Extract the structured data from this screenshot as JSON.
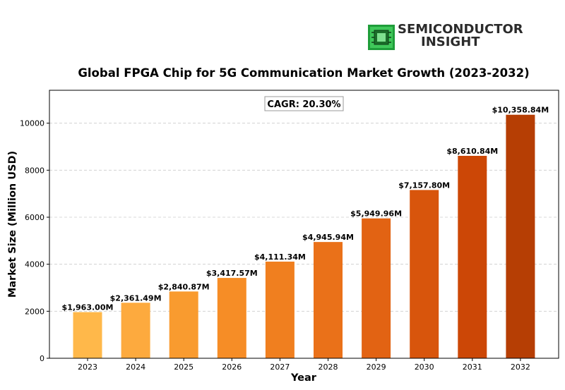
{
  "logo": {
    "line1": "SEMICONDUCTOR",
    "line2": "INSIGHT",
    "icon": "chip-icon"
  },
  "chart_data": {
    "type": "bar",
    "title": "Global FPGA Chip for 5G Communication Market Growth (2023-2032)",
    "xlabel": "Year",
    "ylabel": "Market Size (Million USD)",
    "annotation": "CAGR: 20.30%",
    "categories": [
      "2023",
      "2024",
      "2025",
      "2026",
      "2027",
      "2028",
      "2029",
      "2030",
      "2031",
      "2032"
    ],
    "values": [
      1963.0,
      2361.49,
      2840.87,
      3417.57,
      4111.34,
      4945.94,
      5949.96,
      7157.8,
      8610.84,
      10358.84
    ],
    "labels": [
      "$1,963.00M",
      "$2,361.49M",
      "$2,840.87M",
      "$3,417.57M",
      "$4,111.34M",
      "$4,945.94M",
      "$5,949.96M",
      "$7,157.80M",
      "$8,610.84M",
      "$10,358.84M"
    ],
    "ylim": [
      0,
      11400
    ],
    "yticks": [
      0,
      2000,
      4000,
      6000,
      8000,
      10000
    ],
    "grid": true,
    "colors": [
      "#ffb84a",
      "#fdaa3e",
      "#f99b2f",
      "#f68d26",
      "#f07f1f",
      "#ea7119",
      "#e26313",
      "#d8550c",
      "#cc4706",
      "#b63e04"
    ]
  }
}
